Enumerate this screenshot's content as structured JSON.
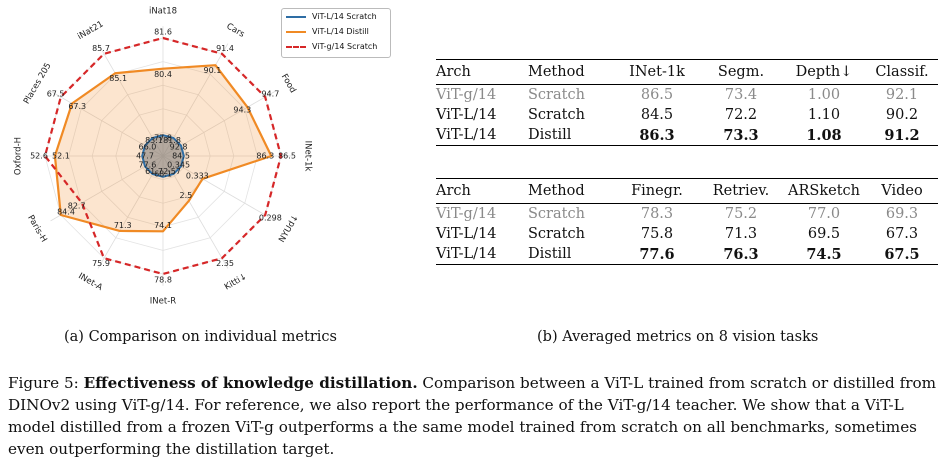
{
  "chart_data": {
    "type": "radar",
    "axes": [
      "iNat18",
      "Cars",
      "Food",
      "INet-1k",
      "NYUd↓",
      "Kitti↓",
      "INet-R",
      "INet-A",
      "Paris-H",
      "Oxford-H",
      "Places 205",
      "iNat21"
    ],
    "series": [
      {
        "name": "ViT-L/14 Scratch",
        "color": "#2e6da4",
        "values": [
          77.8,
          81.8,
          92.8,
          84.5,
          0.345,
          2.57,
          68.1,
          61.7,
          77.6,
          47.7,
          66.0,
          83.1
        ]
      },
      {
        "name": "ViT-L/14 Distill",
        "color": "#f08a24",
        "values": [
          80.4,
          90.1,
          94.3,
          86.3,
          0.333,
          2.5,
          74.1,
          71.3,
          84.4,
          52.1,
          67.3,
          85.1
        ]
      },
      {
        "name": "ViT-g/14 Scratch",
        "color": "#d62728",
        "values": [
          81.6,
          91.4,
          94.7,
          86.5,
          0.298,
          2.35,
          78.8,
          75.9,
          82.7,
          52.6,
          67.5,
          85.7
        ]
      }
    ],
    "value_labels": [
      [
        "77.8",
        "81.8",
        "92.8",
        "84.5",
        "0.345",
        "2.57",
        "68.1",
        "61.7",
        "77.6",
        "47.7",
        "66.0",
        "83.1"
      ],
      [
        "80.4",
        "90.1",
        "94.3",
        "86.3",
        "0.333",
        "2.5",
        "74.1",
        "71.3",
        "84.4",
        "52.1",
        "67.3",
        "85.1"
      ],
      [
        "81.6",
        "91.4",
        "94.7",
        "86.5",
        "0.298",
        "2.35",
        "78.8",
        "75.9",
        "82.7",
        "52.6",
        "67.5",
        "85.7"
      ]
    ],
    "legend_position": "top-right",
    "grid": true
  },
  "tables": [
    {
      "headers": [
        "Arch",
        "Method",
        "INet-1k",
        "Segm.",
        "Depth↓",
        "Classif."
      ],
      "rows": [
        {
          "style": "gray",
          "cells": [
            "ViT-g/14",
            "Scratch",
            "86.5",
            "73.4",
            "1.00",
            "92.1"
          ],
          "bold": [
            false,
            false,
            false,
            false,
            false,
            false
          ]
        },
        {
          "style": "normal",
          "cells": [
            "ViT-L/14",
            "Scratch",
            "84.5",
            "72.2",
            "1.10",
            "90.2"
          ],
          "bold": [
            false,
            false,
            false,
            false,
            false,
            false
          ]
        },
        {
          "style": "normal",
          "cells": [
            "ViT-L/14",
            "Distill",
            "86.3",
            "73.3",
            "1.08",
            "91.2"
          ],
          "bold": [
            false,
            false,
            true,
            true,
            true,
            true
          ]
        }
      ]
    },
    {
      "headers": [
        "Arch",
        "Method",
        "Finegr.",
        "Retriev.",
        "ARSketch",
        "Video"
      ],
      "rows": [
        {
          "style": "gray",
          "cells": [
            "ViT-g/14",
            "Scratch",
            "78.3",
            "75.2",
            "77.0",
            "69.3"
          ],
          "bold": [
            false,
            false,
            false,
            false,
            false,
            false
          ]
        },
        {
          "style": "normal",
          "cells": [
            "ViT-L/14",
            "Scratch",
            "75.8",
            "71.3",
            "69.5",
            "67.3"
          ],
          "bold": [
            false,
            false,
            false,
            false,
            false,
            false
          ]
        },
        {
          "style": "normal",
          "cells": [
            "ViT-L/14",
            "Distill",
            "77.6",
            "76.3",
            "74.5",
            "67.5"
          ],
          "bold": [
            false,
            false,
            true,
            true,
            true,
            true
          ]
        }
      ]
    }
  ],
  "subcaptions": {
    "a": "(a) Comparison on individual metrics",
    "b": "(b) Averaged metrics on 8 vision tasks"
  },
  "caption": {
    "label": "Figure 5: ",
    "title": "Effectiveness of knowledge distillation.",
    "text": " Comparison between a ViT-L trained from scratch or distilled from DINOv2 using ViT-g/14. For reference, we also report the performance of the ViT-g/14 teacher. We show that a ViT-L model distilled from a frozen ViT-g outperforms a the same model trained from scratch on all benchmarks, sometimes even outperforming the distillation target."
  }
}
